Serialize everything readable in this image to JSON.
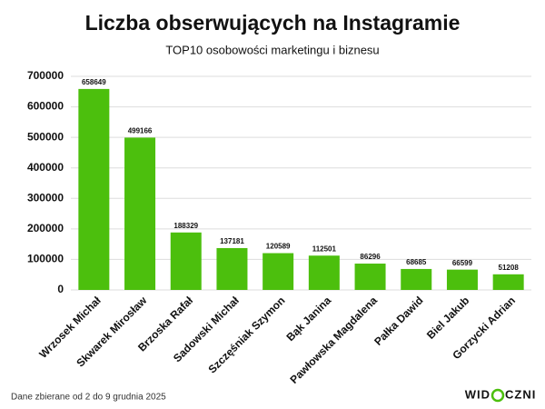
{
  "chart_data": {
    "type": "bar",
    "title": "Liczba obserwujących na Instagramie",
    "subtitle": "TOP10 osobowości marketingu i biznesu",
    "categories": [
      "Wrzosek Michał",
      "Skwarek Mirosław",
      "Brzoska Rafał",
      "Sadowski Michał",
      "Szczęśniak Szymon",
      "Bąk Janina",
      "Pawłowska Magdalena",
      "Pałka Dawid",
      "Biel Jakub",
      "Gorzycki Adrian"
    ],
    "values": [
      658649,
      499166,
      188329,
      137181,
      120589,
      112501,
      86296,
      68685,
      66599,
      51208
    ],
    "color": "#4cbf0d",
    "ylim": [
      0,
      700000
    ],
    "yticks": [
      0,
      100000,
      200000,
      300000,
      400000,
      500000,
      600000,
      700000
    ],
    "grid": true,
    "footnote": "Dane zbierane od 2 do 9 grudnia 2025",
    "logo": [
      "WID",
      "CZNI"
    ]
  }
}
